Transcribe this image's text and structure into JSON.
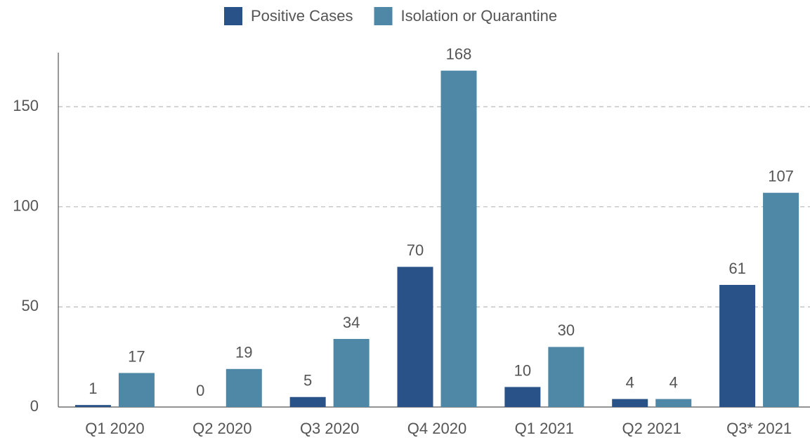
{
  "chart_data": {
    "type": "bar",
    "categories": [
      "Q1 2020",
      "Q2 2020",
      "Q3 2020",
      "Q4 2020",
      "Q1 2021",
      "Q2 2021",
      "Q3* 2021"
    ],
    "series": [
      {
        "name": "Positive Cases",
        "color": "#285288",
        "values": [
          1,
          0,
          5,
          70,
          10,
          4,
          61
        ]
      },
      {
        "name": "Isolation or Quarantine",
        "color": "#4f87a6",
        "values": [
          17,
          19,
          34,
          168,
          30,
          4,
          107
        ]
      }
    ],
    "ylim": [
      0,
      177
    ],
    "yticks": [
      0,
      50,
      100,
      150
    ],
    "grid": true,
    "legend": "top"
  }
}
